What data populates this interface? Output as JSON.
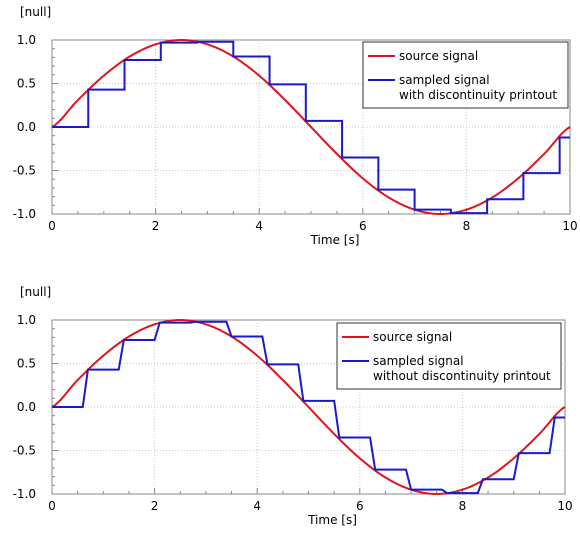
{
  "chart_data": [
    {
      "type": "line",
      "ylabel": "[null]",
      "xlabel": "Time [s]",
      "xlim": [
        0,
        10
      ],
      "ylim": [
        -1.0,
        1.0
      ],
      "x_ticks": [
        "0",
        "2",
        "4",
        "6",
        "8",
        "10"
      ],
      "y_ticks": [
        "1.0",
        "0.5",
        "0.0",
        "-0.5",
        "-1.0"
      ],
      "grid": true,
      "legend_position": "top-right",
      "series": [
        {
          "name": "source signal",
          "color": "#e0141e",
          "x": [
            0,
            0.5,
            1.0,
            1.5,
            2.0,
            2.5,
            3.0,
            3.5,
            4.0,
            4.5,
            5.0,
            5.5,
            6.0,
            6.5,
            7.0,
            7.5,
            8.0,
            8.5,
            9.0,
            9.5,
            10.0
          ],
          "y": [
            0,
            0.31,
            0.59,
            0.81,
            0.95,
            1.0,
            0.95,
            0.81,
            0.59,
            0.31,
            0,
            -0.31,
            -0.59,
            -0.81,
            -0.95,
            -1.0,
            -0.95,
            -0.81,
            -0.59,
            -0.31,
            0
          ]
        },
        {
          "name": "sampled signal\nwith discontinuity printout",
          "color": "#1a1acc",
          "step": true,
          "x": [
            0,
            0.7,
            1.4,
            2.1,
            2.8,
            3.5,
            4.2,
            4.9,
            5.6,
            6.3,
            7.0,
            7.7,
            8.4,
            9.1,
            9.8
          ],
          "y": [
            0,
            0.43,
            0.77,
            0.97,
            0.98,
            0.81,
            0.49,
            0.07,
            -0.35,
            -0.72,
            -0.95,
            -0.99,
            -0.83,
            -0.53,
            -0.12
          ]
        }
      ]
    },
    {
      "type": "line",
      "ylabel": "[null]",
      "xlabel": "Time [s]",
      "xlim": [
        0,
        10
      ],
      "ylim": [
        -1.0,
        1.0
      ],
      "x_ticks": [
        "0",
        "2",
        "4",
        "6",
        "8",
        "10"
      ],
      "y_ticks": [
        "1.0",
        "0.5",
        "0.0",
        "-0.5",
        "-1.0"
      ],
      "grid": true,
      "legend_position": "top-right",
      "series": [
        {
          "name": "source signal",
          "color": "#e0141e",
          "x": [
            0,
            0.5,
            1.0,
            1.5,
            2.0,
            2.5,
            3.0,
            3.5,
            4.0,
            4.5,
            5.0,
            5.5,
            6.0,
            6.5,
            7.0,
            7.5,
            8.0,
            8.5,
            9.0,
            9.5,
            10.0
          ],
          "y": [
            0,
            0.31,
            0.59,
            0.81,
            0.95,
            1.0,
            0.95,
            0.81,
            0.59,
            0.31,
            0,
            -0.31,
            -0.59,
            -0.81,
            -0.95,
            -1.0,
            -0.95,
            -0.81,
            -0.59,
            -0.31,
            0
          ]
        },
        {
          "name": "sampled signal\nwithout discontinuity printout",
          "color": "#1a1acc",
          "step": true,
          "step_transition": 0.1,
          "x": [
            0,
            0.7,
            1.4,
            2.1,
            2.8,
            3.5,
            4.2,
            4.9,
            5.6,
            6.3,
            7.0,
            7.7,
            8.4,
            9.1,
            9.8
          ],
          "y": [
            0,
            0.43,
            0.77,
            0.97,
            0.98,
            0.81,
            0.49,
            0.07,
            -0.35,
            -0.72,
            -0.95,
            -0.99,
            -0.83,
            -0.53,
            -0.12
          ]
        }
      ]
    }
  ]
}
